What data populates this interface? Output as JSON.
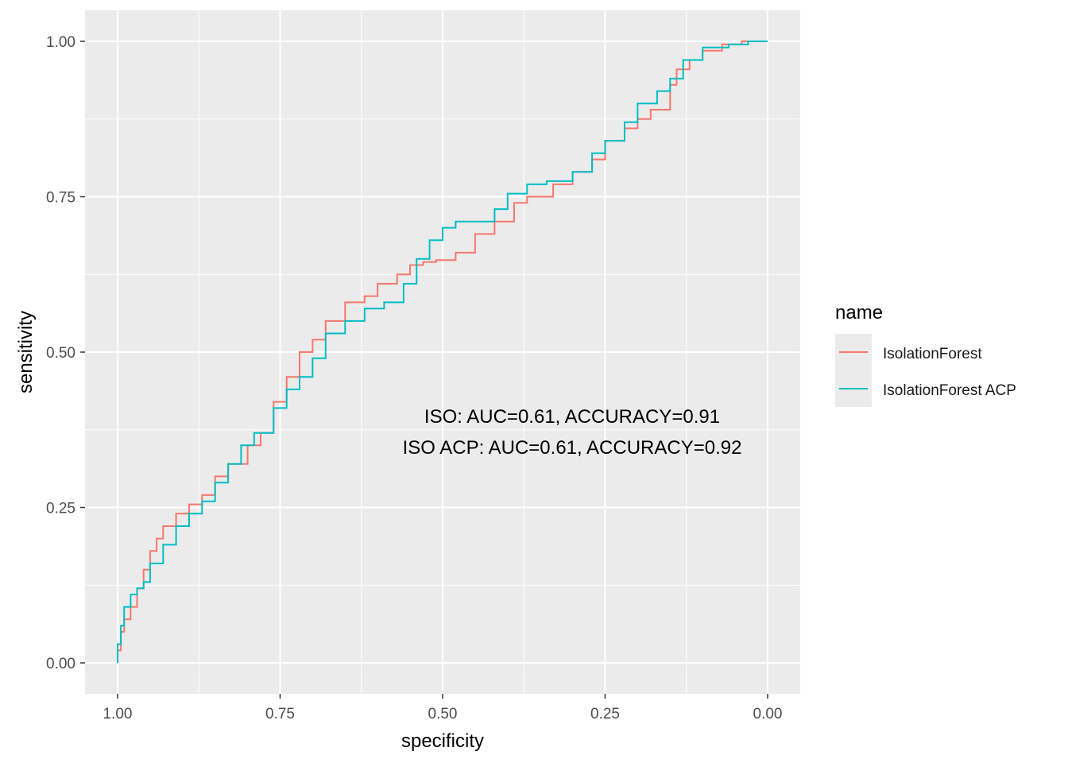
{
  "chart_data": {
    "type": "line",
    "xlabel": "specificity",
    "ylabel": "sensitivity",
    "xlim": [
      1.0,
      0.0
    ],
    "ylim": [
      0.0,
      1.0
    ],
    "x_reversed": true,
    "x_ticks": [
      "1.00",
      "0.75",
      "0.50",
      "0.25",
      "0.00"
    ],
    "y_ticks": [
      "0.00",
      "0.25",
      "0.50",
      "0.75",
      "1.00"
    ],
    "grid": true,
    "legend": {
      "title": "name",
      "position": "right",
      "entries": [
        "IsolationForest",
        "IsolationForest ACP"
      ]
    },
    "annotations": [
      "ISO: AUC=0.61, ACCURACY=0.91",
      "ISO ACP: AUC=0.61, ACCURACY=0.92"
    ],
    "colors": {
      "panel": "#EBEBEB",
      "grid": "#FFFFFF",
      "IsolationForest": "#F8766D",
      "IsolationForest ACP": "#00BFC4"
    },
    "series": [
      {
        "name": "IsolationForest",
        "color": "#F8766D",
        "points": [
          [
            1.0,
            0.0
          ],
          [
            0.995,
            0.02
          ],
          [
            0.99,
            0.05
          ],
          [
            0.98,
            0.07
          ],
          [
            0.97,
            0.09
          ],
          [
            0.96,
            0.12
          ],
          [
            0.95,
            0.15
          ],
          [
            0.94,
            0.18
          ],
          [
            0.93,
            0.2
          ],
          [
            0.91,
            0.22
          ],
          [
            0.89,
            0.24
          ],
          [
            0.87,
            0.255
          ],
          [
            0.85,
            0.27
          ],
          [
            0.83,
            0.3
          ],
          [
            0.8,
            0.32
          ],
          [
            0.78,
            0.35
          ],
          [
            0.76,
            0.37
          ],
          [
            0.74,
            0.42
          ],
          [
            0.72,
            0.46
          ],
          [
            0.7,
            0.5
          ],
          [
            0.68,
            0.52
          ],
          [
            0.65,
            0.55
          ],
          [
            0.62,
            0.58
          ],
          [
            0.6,
            0.59
          ],
          [
            0.57,
            0.61
          ],
          [
            0.55,
            0.625
          ],
          [
            0.53,
            0.64
          ],
          [
            0.51,
            0.645
          ],
          [
            0.48,
            0.648
          ],
          [
            0.45,
            0.66
          ],
          [
            0.42,
            0.69
          ],
          [
            0.39,
            0.71
          ],
          [
            0.37,
            0.74
          ],
          [
            0.33,
            0.75
          ],
          [
            0.3,
            0.77
          ],
          [
            0.27,
            0.79
          ],
          [
            0.25,
            0.81
          ],
          [
            0.22,
            0.84
          ],
          [
            0.2,
            0.86
          ],
          [
            0.18,
            0.875
          ],
          [
            0.15,
            0.89
          ],
          [
            0.14,
            0.93
          ],
          [
            0.12,
            0.955
          ],
          [
            0.1,
            0.97
          ],
          [
            0.07,
            0.985
          ],
          [
            0.04,
            0.995
          ],
          [
            0.0,
            1.0
          ]
        ]
      },
      {
        "name": "IsolationForest ACP",
        "color": "#00BFC4",
        "points": [
          [
            1.0,
            0.0
          ],
          [
            0.995,
            0.03
          ],
          [
            0.99,
            0.06
          ],
          [
            0.98,
            0.09
          ],
          [
            0.97,
            0.11
          ],
          [
            0.96,
            0.12
          ],
          [
            0.95,
            0.13
          ],
          [
            0.93,
            0.16
          ],
          [
            0.91,
            0.19
          ],
          [
            0.89,
            0.22
          ],
          [
            0.87,
            0.24
          ],
          [
            0.85,
            0.26
          ],
          [
            0.83,
            0.29
          ],
          [
            0.81,
            0.32
          ],
          [
            0.79,
            0.35
          ],
          [
            0.76,
            0.37
          ],
          [
            0.74,
            0.41
          ],
          [
            0.72,
            0.44
          ],
          [
            0.7,
            0.46
          ],
          [
            0.68,
            0.49
          ],
          [
            0.65,
            0.53
          ],
          [
            0.62,
            0.55
          ],
          [
            0.59,
            0.57
          ],
          [
            0.56,
            0.58
          ],
          [
            0.54,
            0.61
          ],
          [
            0.52,
            0.65
          ],
          [
            0.5,
            0.68
          ],
          [
            0.48,
            0.7
          ],
          [
            0.45,
            0.71
          ],
          [
            0.42,
            0.71
          ],
          [
            0.4,
            0.73
          ],
          [
            0.37,
            0.755
          ],
          [
            0.34,
            0.77
          ],
          [
            0.3,
            0.775
          ],
          [
            0.27,
            0.79
          ],
          [
            0.25,
            0.82
          ],
          [
            0.22,
            0.84
          ],
          [
            0.2,
            0.87
          ],
          [
            0.17,
            0.9
          ],
          [
            0.15,
            0.92
          ],
          [
            0.13,
            0.94
          ],
          [
            0.1,
            0.97
          ],
          [
            0.06,
            0.99
          ],
          [
            0.03,
            0.995
          ],
          [
            0.0,
            1.0
          ]
        ]
      }
    ]
  }
}
